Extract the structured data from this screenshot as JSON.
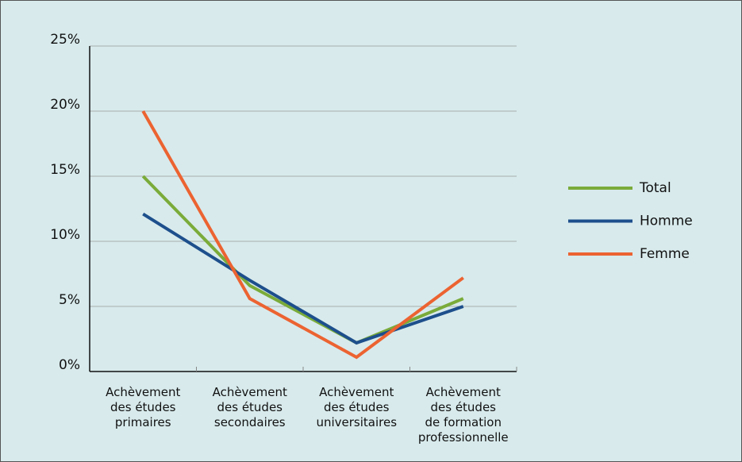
{
  "chart_data": {
    "type": "line",
    "categories": [
      "Achèvement\ndes études\nprimaires",
      "Achèvement\ndes études\nsecondaires",
      "Achèvement\ndes études\nuniversitaires",
      "Achèvement\ndes études\nde formation\nprofessionnelle"
    ],
    "series": [
      {
        "name": "Total",
        "color": "#7aab3a",
        "values": [
          15,
          6.6,
          2.2,
          5.6
        ]
      },
      {
        "name": "Homme",
        "color": "#1d4f8c",
        "values": [
          12.1,
          7.0,
          2.2,
          5.0
        ]
      },
      {
        "name": "Femme",
        "color": "#ec6331",
        "values": [
          20,
          5.6,
          1.1,
          7.2
        ]
      }
    ],
    "ylim": [
      0,
      25
    ],
    "yticks": [
      {
        "value": 0,
        "label": "0%"
      },
      {
        "value": 5,
        "label": "5%"
      },
      {
        "value": 10,
        "label": "10%"
      },
      {
        "value": 15,
        "label": "15%"
      },
      {
        "value": 20,
        "label": "20%"
      },
      {
        "value": 25,
        "label": "25%"
      }
    ],
    "grid": true,
    "legend": "right"
  }
}
